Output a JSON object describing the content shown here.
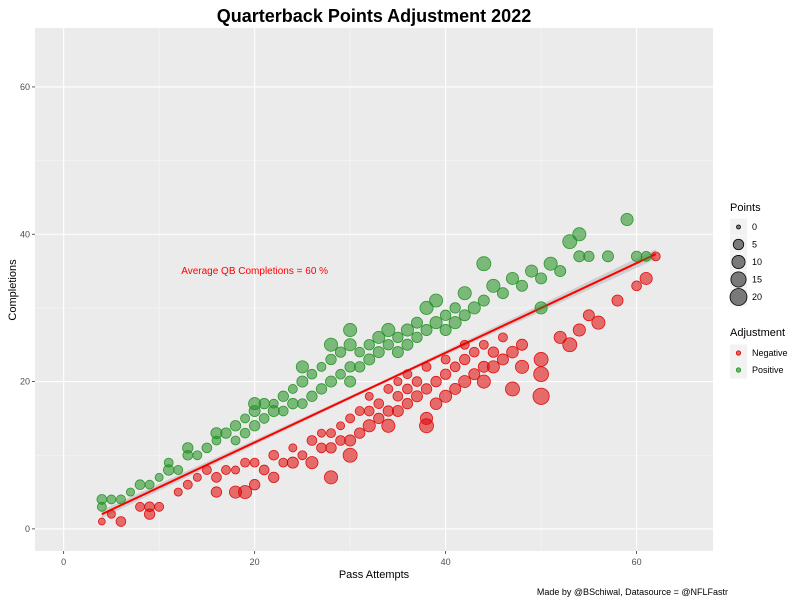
{
  "chart_data": {
    "type": "scatter",
    "title": "Quarterback Points Adjustment 2022",
    "xlabel": "Pass Attempts",
    "ylabel": "Completions",
    "xlim": [
      -3,
      68
    ],
    "ylim": [
      -3,
      68
    ],
    "x_ticks": [
      0,
      20,
      40,
      60
    ],
    "y_ticks": [
      0,
      20,
      40,
      60
    ],
    "grid": true,
    "annotation": {
      "text": "Average QB Completions = 60 %",
      "x": 20,
      "y": 35,
      "color": "#ff0000"
    },
    "caption": "Made by @BSchiwal, Datasource = @NFLFastr",
    "trend_line": {
      "x": [
        4,
        62
      ],
      "y": [
        2,
        37.3
      ],
      "color": "#ff0000"
    },
    "size_legend": {
      "title": "Points",
      "values": [
        0,
        5,
        10,
        15,
        20
      ]
    },
    "color_legend": {
      "title": "Adjustment",
      "entries": [
        {
          "name": "Negative",
          "color": "#e00000"
        },
        {
          "name": "Positive",
          "color": "#1f8f1f"
        }
      ]
    },
    "series": [
      {
        "name": "Negative",
        "color": "#e00000",
        "points": [
          [
            4,
            1,
            1
          ],
          [
            5,
            2,
            2
          ],
          [
            6,
            1,
            4
          ],
          [
            8,
            3,
            3
          ],
          [
            9,
            2,
            5
          ],
          [
            9,
            3,
            4
          ],
          [
            10,
            3,
            3
          ],
          [
            12,
            5,
            2
          ],
          [
            13,
            6,
            3
          ],
          [
            14,
            7,
            2
          ],
          [
            15,
            8,
            3
          ],
          [
            16,
            5,
            5
          ],
          [
            16,
            7,
            4
          ],
          [
            17,
            8,
            3
          ],
          [
            18,
            5,
            8
          ],
          [
            18,
            8,
            2
          ],
          [
            19,
            5,
            10
          ],
          [
            19,
            9,
            3
          ],
          [
            20,
            6,
            5
          ],
          [
            20,
            9,
            3
          ],
          [
            21,
            8,
            4
          ],
          [
            22,
            7,
            5
          ],
          [
            22,
            10,
            4
          ],
          [
            23,
            9,
            3
          ],
          [
            24,
            9,
            6
          ],
          [
            24,
            11,
            2
          ],
          [
            25,
            10,
            3
          ],
          [
            26,
            9,
            8
          ],
          [
            26,
            12,
            4
          ],
          [
            27,
            11,
            4
          ],
          [
            27,
            13,
            2
          ],
          [
            28,
            7,
            10
          ],
          [
            28,
            11,
            5
          ],
          [
            28,
            13,
            3
          ],
          [
            29,
            12,
            4
          ],
          [
            29,
            14,
            2
          ],
          [
            30,
            10,
            12
          ],
          [
            30,
            12,
            6
          ],
          [
            30,
            15,
            3
          ],
          [
            31,
            13,
            5
          ],
          [
            31,
            16,
            3
          ],
          [
            32,
            14,
            8
          ],
          [
            32,
            16,
            4
          ],
          [
            32,
            18,
            2
          ],
          [
            33,
            15,
            5
          ],
          [
            33,
            17,
            4
          ],
          [
            34,
            14,
            10
          ],
          [
            34,
            16,
            5
          ],
          [
            34,
            19,
            3
          ],
          [
            35,
            16,
            6
          ],
          [
            35,
            18,
            4
          ],
          [
            35,
            20,
            2
          ],
          [
            36,
            17,
            5
          ],
          [
            36,
            19,
            4
          ],
          [
            36,
            21,
            3
          ],
          [
            37,
            18,
            6
          ],
          [
            37,
            20,
            4
          ],
          [
            38,
            14,
            12
          ],
          [
            38,
            15,
            8
          ],
          [
            38,
            19,
            5
          ],
          [
            38,
            22,
            3
          ],
          [
            39,
            17,
            7
          ],
          [
            39,
            20,
            5
          ],
          [
            40,
            18,
            8
          ],
          [
            40,
            21,
            5
          ],
          [
            40,
            23,
            3
          ],
          [
            41,
            19,
            6
          ],
          [
            41,
            22,
            4
          ],
          [
            42,
            20,
            8
          ],
          [
            42,
            23,
            5
          ],
          [
            42,
            25,
            3
          ],
          [
            43,
            21,
            6
          ],
          [
            43,
            24,
            4
          ],
          [
            44,
            20,
            10
          ],
          [
            44,
            22,
            6
          ],
          [
            44,
            25,
            3
          ],
          [
            45,
            22,
            8
          ],
          [
            45,
            24,
            5
          ],
          [
            46,
            23,
            6
          ],
          [
            46,
            26,
            3
          ],
          [
            47,
            19,
            12
          ],
          [
            47,
            24,
            7
          ],
          [
            48,
            22,
            10
          ],
          [
            48,
            25,
            6
          ],
          [
            50,
            21,
            14
          ],
          [
            50,
            23,
            12
          ],
          [
            50,
            18,
            18
          ],
          [
            52,
            26,
            8
          ],
          [
            53,
            25,
            12
          ],
          [
            54,
            27,
            8
          ],
          [
            55,
            29,
            6
          ],
          [
            56,
            28,
            10
          ],
          [
            58,
            31,
            6
          ],
          [
            60,
            33,
            4
          ],
          [
            61,
            34,
            8
          ],
          [
            62,
            37,
            3
          ]
        ]
      },
      {
        "name": "Positive",
        "color": "#1f8f1f",
        "points": [
          [
            4,
            3,
            3
          ],
          [
            4,
            4,
            4
          ],
          [
            5,
            4,
            3
          ],
          [
            6,
            4,
            3
          ],
          [
            7,
            5,
            2
          ],
          [
            8,
            6,
            4
          ],
          [
            9,
            6,
            3
          ],
          [
            10,
            7,
            2
          ],
          [
            11,
            8,
            5
          ],
          [
            11,
            9,
            3
          ],
          [
            12,
            8,
            3
          ],
          [
            13,
            10,
            4
          ],
          [
            13,
            11,
            5
          ],
          [
            14,
            10,
            3
          ],
          [
            15,
            11,
            4
          ],
          [
            16,
            12,
            3
          ],
          [
            16,
            13,
            6
          ],
          [
            17,
            13,
            5
          ],
          [
            18,
            12,
            3
          ],
          [
            18,
            14,
            5
          ],
          [
            19,
            13,
            4
          ],
          [
            19,
            15,
            3
          ],
          [
            20,
            14,
            5
          ],
          [
            20,
            16,
            6
          ],
          [
            20,
            17,
            8
          ],
          [
            21,
            15,
            4
          ],
          [
            21,
            17,
            5
          ],
          [
            22,
            16,
            6
          ],
          [
            22,
            17,
            3
          ],
          [
            23,
            16,
            4
          ],
          [
            23,
            18,
            5
          ],
          [
            24,
            17,
            5
          ],
          [
            24,
            19,
            3
          ],
          [
            25,
            17,
            4
          ],
          [
            25,
            20,
            6
          ],
          [
            25,
            22,
            8
          ],
          [
            26,
            18,
            5
          ],
          [
            26,
            21,
            4
          ],
          [
            27,
            19,
            5
          ],
          [
            27,
            22,
            3
          ],
          [
            28,
            20,
            6
          ],
          [
            28,
            23,
            5
          ],
          [
            28,
            25,
            10
          ],
          [
            29,
            21,
            4
          ],
          [
            29,
            24,
            5
          ],
          [
            30,
            20,
            6
          ],
          [
            30,
            22,
            5
          ],
          [
            30,
            25,
            8
          ],
          [
            30,
            27,
            10
          ],
          [
            31,
            22,
            5
          ],
          [
            31,
            24,
            4
          ],
          [
            32,
            23,
            6
          ],
          [
            32,
            25,
            5
          ],
          [
            33,
            24,
            6
          ],
          [
            33,
            26,
            8
          ],
          [
            34,
            25,
            5
          ],
          [
            34,
            27,
            10
          ],
          [
            35,
            24,
            6
          ],
          [
            35,
            26,
            5
          ],
          [
            36,
            25,
            6
          ],
          [
            36,
            27,
            8
          ],
          [
            37,
            26,
            5
          ],
          [
            37,
            28,
            6
          ],
          [
            38,
            27,
            6
          ],
          [
            38,
            30,
            10
          ],
          [
            39,
            28,
            8
          ],
          [
            39,
            31,
            10
          ],
          [
            40,
            27,
            6
          ],
          [
            40,
            29,
            5
          ],
          [
            41,
            28,
            8
          ],
          [
            41,
            30,
            5
          ],
          [
            42,
            29,
            6
          ],
          [
            42,
            32,
            10
          ],
          [
            43,
            30,
            8
          ],
          [
            44,
            31,
            6
          ],
          [
            44,
            36,
            12
          ],
          [
            45,
            33,
            10
          ],
          [
            46,
            32,
            6
          ],
          [
            47,
            34,
            8
          ],
          [
            48,
            33,
            6
          ],
          [
            49,
            35,
            8
          ],
          [
            50,
            34,
            6
          ],
          [
            50,
            30,
            8
          ],
          [
            51,
            36,
            10
          ],
          [
            52,
            35,
            6
          ],
          [
            53,
            39,
            12
          ],
          [
            54,
            40,
            10
          ],
          [
            54,
            37,
            6
          ],
          [
            55,
            37,
            5
          ],
          [
            57,
            37,
            6
          ],
          [
            59,
            42,
            8
          ],
          [
            60,
            37,
            5
          ],
          [
            61,
            37,
            4
          ]
        ]
      }
    ]
  }
}
